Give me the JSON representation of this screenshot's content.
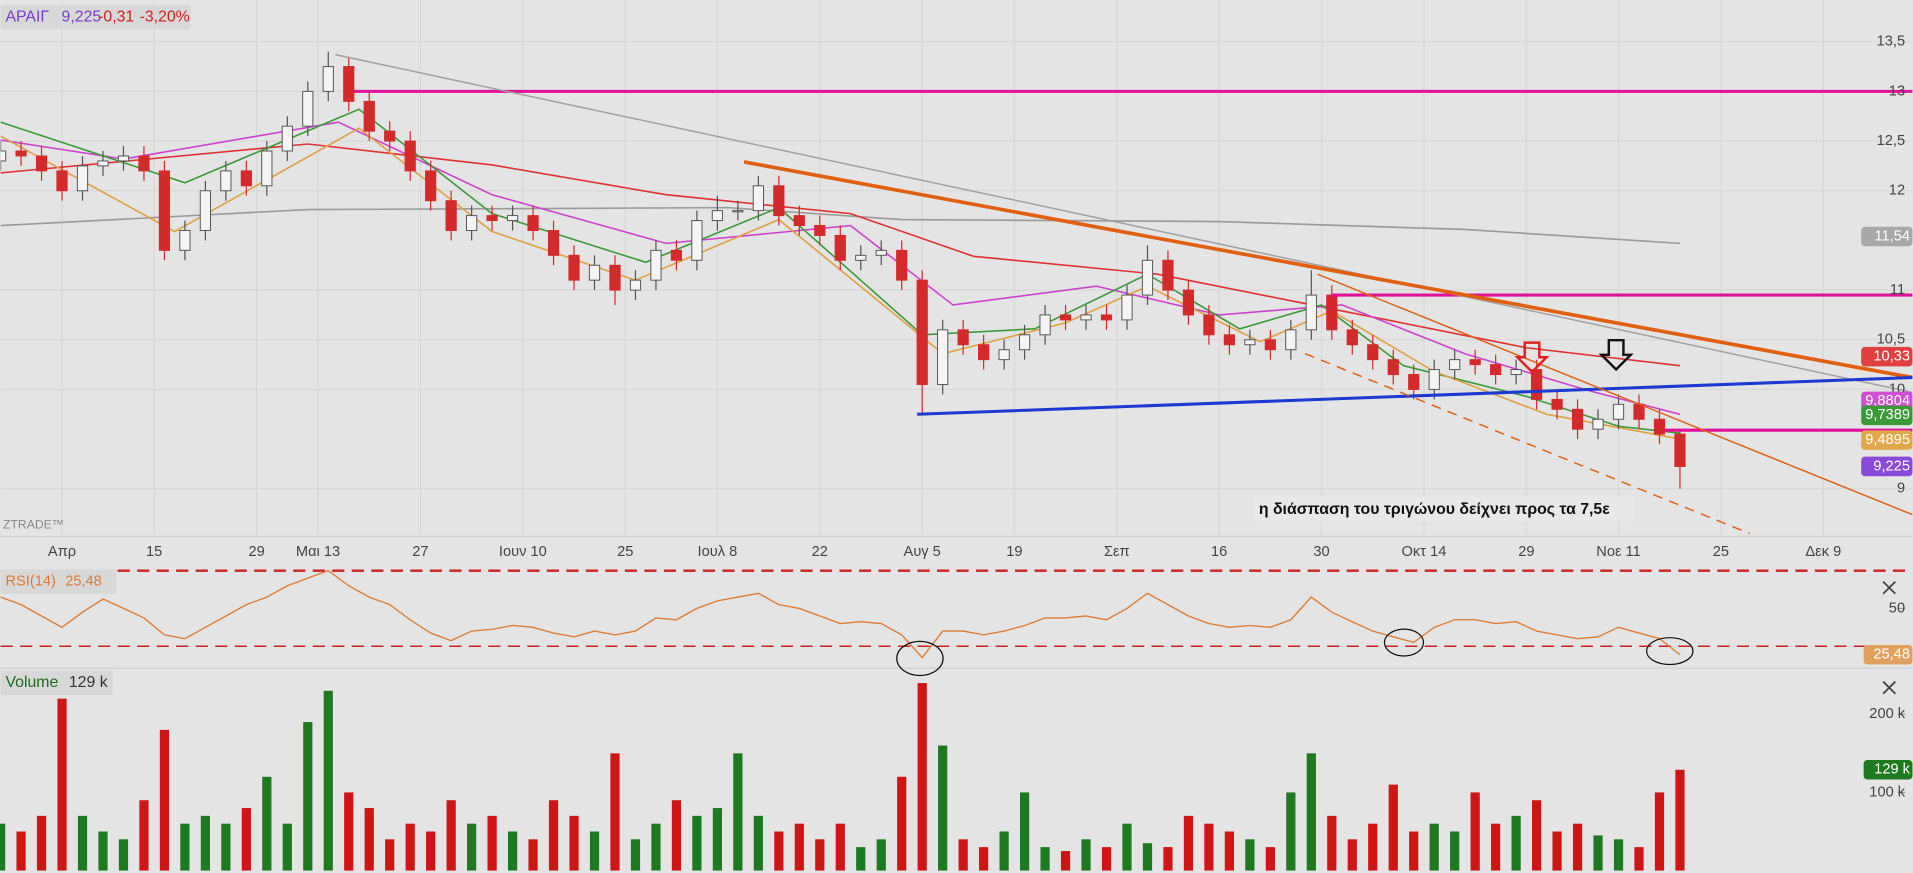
{
  "chart_data": {
    "type": "candlestick",
    "header": {
      "symbol": "ΑΡΑΙΓ",
      "last": 9.225,
      "last_label": "9,225",
      "change": -0.31,
      "change_label": "-0,31",
      "change_pct": -3.2,
      "change_pct_label": "-3,20%"
    },
    "watermark": "ZTRADE™",
    "annotation": "η διάσπαση του τριγώνου δείχνει προς τα 7,5ε",
    "x": [
      0,
      2,
      4,
      6,
      8,
      10,
      12,
      14,
      16,
      18,
      20,
      22,
      24,
      26,
      28,
      30,
      32,
      34,
      36,
      38,
      40,
      42,
      44,
      46,
      48,
      50,
      52,
      54,
      56,
      58,
      60,
      62,
      64,
      66,
      68,
      70,
      72,
      74,
      76,
      78,
      80,
      82,
      84,
      86,
      88,
      90,
      92,
      94,
      96,
      98,
      100,
      102,
      104,
      106,
      108,
      110,
      112,
      114,
      116,
      118,
      120,
      122,
      124,
      126,
      128,
      130,
      132,
      134,
      136,
      138,
      140,
      142,
      144,
      146,
      148,
      150,
      152,
      154,
      156,
      158,
      160,
      162,
      164
    ],
    "open": [
      12.3,
      12.4,
      12.35,
      12.2,
      12.0,
      12.25,
      12.3,
      12.35,
      12.2,
      11.4,
      11.6,
      12.0,
      12.2,
      12.05,
      12.4,
      12.65,
      13.0,
      13.25,
      12.9,
      12.6,
      12.5,
      12.2,
      11.9,
      11.6,
      11.75,
      11.7,
      11.75,
      11.6,
      11.35,
      11.1,
      11.25,
      11.0,
      11.1,
      11.4,
      11.3,
      11.7,
      11.8,
      11.8,
      12.05,
      11.75,
      11.65,
      11.55,
      11.3,
      11.35,
      11.4,
      11.1,
      10.05,
      10.6,
      10.45,
      10.3,
      10.4,
      10.55,
      10.75,
      10.7,
      10.75,
      10.7,
      10.95,
      11.3,
      11.0,
      10.75,
      10.55,
      10.45,
      10.5,
      10.4,
      10.6,
      10.95,
      10.6,
      10.45,
      10.3,
      10.15,
      10.0,
      10.2,
      10.3,
      10.25,
      10.15,
      10.2,
      9.9,
      9.8,
      9.6,
      9.7,
      9.85,
      9.7,
      9.55
    ],
    "high": [
      12.5,
      12.5,
      12.45,
      12.3,
      12.35,
      12.4,
      12.45,
      12.45,
      12.3,
      11.7,
      12.1,
      12.3,
      12.3,
      12.5,
      12.75,
      13.1,
      13.4,
      13.35,
      13.0,
      12.7,
      12.6,
      12.3,
      12.0,
      11.85,
      11.85,
      11.85,
      11.85,
      11.7,
      11.45,
      11.35,
      11.35,
      11.2,
      11.5,
      11.5,
      11.8,
      11.95,
      11.9,
      12.15,
      12.15,
      11.85,
      11.75,
      11.65,
      11.45,
      11.5,
      11.5,
      11.2,
      10.7,
      10.7,
      10.55,
      10.5,
      10.65,
      10.85,
      10.85,
      10.85,
      10.85,
      11.05,
      11.45,
      11.4,
      11.1,
      10.85,
      10.65,
      10.6,
      10.6,
      10.7,
      11.2,
      11.05,
      10.7,
      10.55,
      10.4,
      10.25,
      10.3,
      10.4,
      10.4,
      10.35,
      10.3,
      10.3,
      10.0,
      9.9,
      9.8,
      9.95,
      9.95,
      9.8,
      9.6
    ],
    "low": [
      12.2,
      12.25,
      12.1,
      11.9,
      11.9,
      12.15,
      12.2,
      12.1,
      11.3,
      11.3,
      11.5,
      11.9,
      11.95,
      11.95,
      12.3,
      12.55,
      12.9,
      12.8,
      12.5,
      12.4,
      12.1,
      11.8,
      11.5,
      11.5,
      11.6,
      11.6,
      11.5,
      11.25,
      11.0,
      11.0,
      10.85,
      10.9,
      11.0,
      11.2,
      11.2,
      11.6,
      11.7,
      11.7,
      11.65,
      11.55,
      11.45,
      11.2,
      11.2,
      11.25,
      11.0,
      9.75,
      9.95,
      10.35,
      10.2,
      10.2,
      10.3,
      10.45,
      10.6,
      10.6,
      10.6,
      10.6,
      10.85,
      10.9,
      10.65,
      10.45,
      10.35,
      10.35,
      10.3,
      10.3,
      10.5,
      10.5,
      10.35,
      10.2,
      10.05,
      9.9,
      9.9,
      10.1,
      10.15,
      10.05,
      10.05,
      9.8,
      9.7,
      9.5,
      9.5,
      9.6,
      9.6,
      9.45,
      9.0
    ],
    "close": [
      12.4,
      12.35,
      12.2,
      12.0,
      12.25,
      12.3,
      12.35,
      12.2,
      11.4,
      11.6,
      12.0,
      12.2,
      12.05,
      12.4,
      12.65,
      13.0,
      13.25,
      12.9,
      12.6,
      12.5,
      12.2,
      11.9,
      11.6,
      11.75,
      11.7,
      11.75,
      11.6,
      11.35,
      11.1,
      11.25,
      11.0,
      11.1,
      11.4,
      11.3,
      11.7,
      11.8,
      11.8,
      12.05,
      11.75,
      11.65,
      11.55,
      11.3,
      11.35,
      11.4,
      11.1,
      10.05,
      10.6,
      10.45,
      10.3,
      10.4,
      10.55,
      10.75,
      10.7,
      10.75,
      10.7,
      10.95,
      11.3,
      11.0,
      10.75,
      10.55,
      10.45,
      10.5,
      10.4,
      10.6,
      10.95,
      10.6,
      10.45,
      10.3,
      10.15,
      10.0,
      10.2,
      10.3,
      10.25,
      10.15,
      10.2,
      9.9,
      9.8,
      9.6,
      9.7,
      9.85,
      9.7,
      9.55,
      9.225
    ],
    "up_color": "#f4f4f4",
    "down_color": "#d42a2a",
    "xlim": [
      0,
      186.7
    ],
    "xticks": [
      {
        "value": 6,
        "label": "Απρ"
      },
      {
        "value": 15,
        "label": "15"
      },
      {
        "value": 25,
        "label": "29"
      },
      {
        "value": 31,
        "label": "Μαι 13"
      },
      {
        "value": 41,
        "label": "27"
      },
      {
        "value": 51,
        "label": "Ιουν 10"
      },
      {
        "value": 61,
        "label": "25"
      },
      {
        "value": 70,
        "label": "Ιουλ 8"
      },
      {
        "value": 80,
        "label": "22"
      },
      {
        "value": 90,
        "label": "Αυγ 5"
      },
      {
        "value": 99,
        "label": "19"
      },
      {
        "value": 109,
        "label": "Σεπ"
      },
      {
        "value": 119,
        "label": "16"
      },
      {
        "value": 129,
        "label": "30"
      },
      {
        "value": 139,
        "label": "Οκτ 14"
      },
      {
        "value": 149,
        "label": "29"
      },
      {
        "value": 158,
        "label": "Νοε 11"
      },
      {
        "value": 168,
        "label": "25"
      },
      {
        "value": 178,
        "label": "Δεκ 9"
      }
    ],
    "ylim": [
      8.52,
      13.92
    ],
    "yticks": [
      {
        "value": 13.5,
        "label": "13,5"
      },
      13,
      {
        "value": 12.5,
        "label": "12,5"
      },
      12,
      11,
      {
        "value": 10.5,
        "label": "10,5"
      },
      10,
      9
    ],
    "grid": true,
    "moving_averages": [
      {
        "color": "#9a9a9a",
        "x": [
          0,
          30,
          71,
          88,
          119,
          143,
          164
        ],
        "values": [
          11.65,
          11.81,
          11.83,
          11.71,
          11.69,
          11.61,
          11.47
        ]
      },
      {
        "color": "#e03030",
        "x": [
          0,
          30,
          48,
          65,
          83,
          95,
          113,
          131,
          149,
          164
        ],
        "values": [
          12.18,
          12.47,
          12.26,
          11.96,
          11.77,
          11.34,
          11.16,
          10.79,
          10.42,
          10.24
        ]
      },
      {
        "color": "#d040d0",
        "x": [
          0,
          12,
          33,
          48,
          65,
          83,
          93,
          107,
          119,
          131,
          143,
          155,
          164
        ],
        "values": [
          12.51,
          12.32,
          12.69,
          11.96,
          11.47,
          11.65,
          10.85,
          11.04,
          10.75,
          10.85,
          10.36,
          9.99,
          9.75
        ]
      },
      {
        "color": "#3a9a3a",
        "x": [
          0,
          18,
          35,
          48,
          63,
          76,
          90,
          101,
          112,
          121,
          129,
          137,
          149,
          158,
          164
        ],
        "values": [
          12.69,
          12.08,
          12.82,
          11.77,
          11.28,
          11.83,
          10.55,
          10.61,
          11.16,
          10.61,
          10.85,
          10.24,
          9.93,
          9.63,
          9.56
        ]
      },
      {
        "color": "#e0a040",
        "x": [
          0,
          17,
          35,
          48,
          62,
          76,
          92,
          104,
          112,
          123,
          130,
          140,
          151,
          164
        ],
        "values": [
          12.55,
          11.59,
          12.63,
          11.59,
          11.1,
          11.71,
          10.36,
          10.67,
          11.04,
          10.48,
          10.79,
          10.18,
          9.75,
          9.5
        ]
      }
    ],
    "price_badges": [
      {
        "value": 11.54,
        "label": "11,54",
        "color": "#a8a8a8"
      },
      {
        "value": 10.33,
        "label": "10,33",
        "color": "#e04040"
      },
      {
        "value": 9.8804,
        "label": "9,8804",
        "color": "#d050d0"
      },
      {
        "value": 9.7389,
        "label": "9,7389",
        "color": "#3a9a3a"
      },
      {
        "value": 9.4895,
        "label": "9,4895",
        "color": "#e0a848"
      },
      {
        "value": 9.225,
        "label": "9,225",
        "color": "#8a4ad8"
      }
    ],
    "drawings": [
      {
        "color": "#e0109a",
        "width": 2.5,
        "dash": "",
        "x": [
          34.5,
          186.7
        ],
        "y": [
          13.0,
          13.0
        ]
      },
      {
        "color": "#e0109a",
        "width": 2.5,
        "dash": "",
        "x": [
          130,
          186.7
        ],
        "y": [
          10.95,
          10.95
        ]
      },
      {
        "color": "#e0109a",
        "width": 2.5,
        "dash": "",
        "x": [
          162.5,
          186.7
        ],
        "y": [
          9.59,
          9.59
        ]
      },
      {
        "color": "#a0a0a0",
        "width": 1.2,
        "dash": "",
        "x": [
          32.7,
          186.7
        ],
        "y": [
          13.37,
          9.97
        ]
      },
      {
        "color": "#e06010",
        "width": 3,
        "dash": "",
        "x": [
          72.6,
          186.7
        ],
        "y": [
          12.29,
          10.12
        ]
      },
      {
        "color": "#1a3ad0",
        "width": 2.5,
        "dash": "",
        "x": [
          89.5,
          186.7
        ],
        "y": [
          9.75,
          10.12
        ]
      },
      {
        "color": "#e06010",
        "width": 1.2,
        "dash": "8 6",
        "x": [
          127.4,
          170.8
        ],
        "y": [
          10.36,
          8.55
        ]
      },
      {
        "color": "#e06010",
        "width": 1.2,
        "dash": "",
        "x": [
          128.6,
          186.7
        ],
        "y": [
          11.16,
          8.74
        ]
      }
    ],
    "rsi": {
      "title": "RSI(14)",
      "color": "#e07a30",
      "last_label": "25,48",
      "values": [
        56,
        52,
        46,
        40,
        48,
        55,
        50,
        45,
        36,
        34,
        40,
        46,
        52,
        56,
        62,
        66,
        70,
        62,
        56,
        52,
        44,
        37,
        33,
        38,
        39,
        41,
        40,
        37,
        35,
        38,
        36,
        38,
        45,
        44,
        50,
        54,
        56,
        58,
        52,
        50,
        46,
        42,
        43,
        42,
        36,
        24,
        38,
        38,
        36,
        38,
        41,
        45,
        45,
        46,
        44,
        50,
        58,
        52,
        46,
        42,
        40,
        41,
        40,
        44,
        56,
        48,
        43,
        38,
        35,
        32,
        40,
        44,
        44,
        42,
        43,
        38,
        36,
        34,
        35,
        40,
        37,
        34,
        25.48
      ],
      "ylim": [
        18.4,
        73.9
      ],
      "yticks": [
        50
      ],
      "levels": [
        70,
        30
      ]
    },
    "volume": {
      "title": "Volume",
      "last_label": "129 k",
      "up_color": "#1e7a1e",
      "down_color": "#d01515",
      "values": [
        60000,
        50000,
        70000,
        220000,
        70000,
        50000,
        40000,
        90000,
        180000,
        60000,
        70000,
        60000,
        80000,
        120000,
        60000,
        190000,
        230000,
        100000,
        80000,
        40000,
        60000,
        50000,
        90000,
        60000,
        70000,
        50000,
        40000,
        90000,
        70000,
        50000,
        150000,
        40000,
        60000,
        90000,
        70000,
        80000,
        150000,
        70000,
        50000,
        60000,
        40000,
        60000,
        30000,
        40000,
        120000,
        240000,
        160000,
        40000,
        30000,
        50000,
        100000,
        30000,
        25000,
        40000,
        30000,
        60000,
        35000,
        30000,
        70000,
        60000,
        50000,
        40000,
        30000,
        100000,
        150000,
        70000,
        40000,
        60000,
        110000,
        50000,
        60000,
        50000,
        100000,
        60000,
        70000,
        90000,
        50000,
        60000,
        45000,
        40000,
        30000,
        100000,
        129000
      ],
      "ylim": [
        0,
        259000
      ],
      "yticks": [
        {
          "value": 100000,
          "label": "100 k"
        },
        {
          "value": 200000,
          "label": "200 k"
        }
      ]
    }
  }
}
